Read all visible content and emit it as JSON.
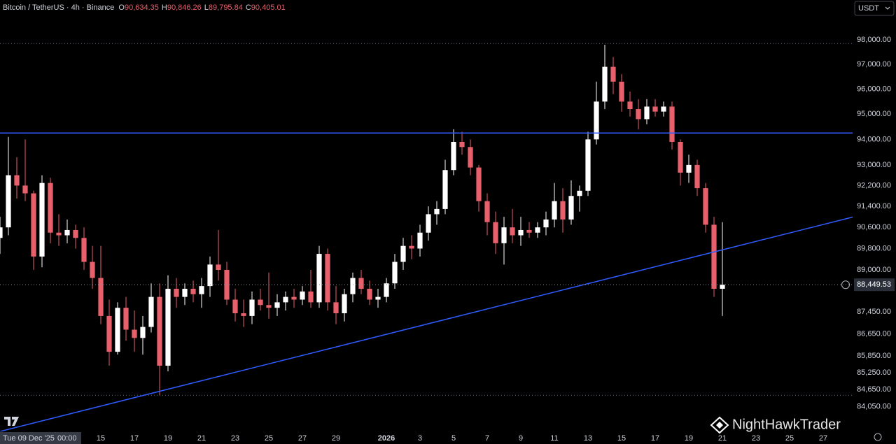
{
  "chart_data": {
    "type": "candlestick",
    "title": "Bitcoin / TetherUS · 4h · Binance",
    "ohlc_legend": [
      {
        "key": "O",
        "label": "90,634.35"
      },
      {
        "key": "H",
        "label": "90,846.26"
      },
      {
        "key": "L",
        "label": "89,795.84"
      },
      {
        "key": "C",
        "label": "90,405.01"
      }
    ],
    "currency": "USDT",
    "watermark": "NightHawkTrader",
    "crosshair_date": "Tue 09 Dec '25",
    "crosshair_time": "00:00",
    "log_scale": true,
    "grid": false,
    "up_color": "#ffffff",
    "down_color": "#e8606c",
    "x": [
      0,
      0.5,
      1,
      1.5,
      2,
      2.5,
      3,
      3.5,
      4,
      4.5,
      5,
      5.5,
      6,
      6.5,
      7,
      7.5,
      8,
      8.5,
      9,
      9.5,
      10,
      10.5,
      11,
      11.5,
      12,
      12.5,
      13,
      13.5,
      14,
      14.5,
      15,
      15.5,
      16,
      16.5,
      17,
      17.5,
      18,
      18.5,
      19,
      19.5,
      20,
      20.5,
      21,
      21.5,
      22,
      22.5,
      23,
      23.5,
      24,
      24.5,
      25,
      25.5,
      26,
      26.5,
      27,
      27.5,
      28,
      28.5,
      29,
      29.5,
      30,
      30.5,
      31,
      31.5,
      32,
      32.5,
      33,
      33.5,
      34,
      34.5,
      35,
      35.5,
      36,
      36.5,
      37,
      37.5,
      38,
      38.5,
      39,
      39.5,
      40,
      40.5,
      41,
      41.5,
      42,
      42.5,
      43
    ],
    "open": [
      90200,
      90600,
      92600,
      92200,
      91900,
      89500,
      92300,
      90400,
      90300,
      90500,
      90200,
      89300,
      88700,
      87300,
      86000,
      87600,
      86800,
      86500,
      86900,
      88000,
      85500,
      88300,
      88000,
      88300,
      88100,
      88400,
      89200,
      89000,
      87900,
      87400,
      87300,
      87900,
      87700,
      87600,
      87800,
      88000,
      87900,
      88200,
      87800,
      89600,
      87800,
      87400,
      88100,
      88700,
      88300,
      87900,
      88000,
      88500,
      89300,
      89900,
      89800,
      90400,
      91100,
      91300,
      92800,
      93900,
      93700,
      92900,
      91600,
      90800,
      90000,
      90600,
      90300,
      90500,
      90400,
      90600,
      90900,
      91600,
      90900,
      91800,
      92000,
      94000,
      95500,
      96900,
      96300,
      95500,
      95200,
      94800,
      95300,
      95100,
      95300,
      93900,
      92700,
      93000,
      92100,
      90700,
      88300
    ],
    "high": [
      91000,
      94100,
      93300,
      94000,
      92000,
      92600,
      92500,
      91100,
      90900,
      90700,
      90600,
      89900,
      89900,
      87900,
      87800,
      88000,
      87500,
      87300,
      88500,
      88500,
      88800,
      88700,
      88500,
      88600,
      88700,
      89500,
      90500,
      89300,
      88300,
      87900,
      88200,
      88300,
      88900,
      88100,
      88200,
      88300,
      88400,
      89000,
      89900,
      89800,
      88400,
      88300,
      88900,
      89000,
      88600,
      88300,
      88700,
      89600,
      90200,
      90300,
      90700,
      91400,
      91600,
      93200,
      94400,
      94300,
      94000,
      93000,
      91900,
      91200,
      91000,
      91300,
      91000,
      90800,
      90800,
      91200,
      92300,
      92100,
      92400,
      92200,
      94300,
      96300,
      97800,
      97300,
      96600,
      95900,
      95600,
      95600,
      95600,
      95500,
      95500,
      94000,
      93400,
      93200,
      92300,
      91000,
      90800
    ],
    "low": [
      89600,
      90300,
      91700,
      91600,
      89000,
      89100,
      90000,
      89900,
      90000,
      89800,
      89000,
      88300,
      87000,
      85500,
      85900,
      86400,
      86000,
      85900,
      86700,
      84450,
      85300,
      87600,
      87700,
      87800,
      87600,
      88000,
      88600,
      87700,
      87100,
      86900,
      87000,
      87500,
      87200,
      87300,
      87500,
      87600,
      87700,
      87600,
      87600,
      87500,
      87000,
      87100,
      87800,
      88100,
      87700,
      87600,
      87800,
      88300,
      89000,
      89400,
      89500,
      90100,
      90700,
      91100,
      92600,
      93400,
      92600,
      91200,
      90300,
      89600,
      89200,
      90000,
      89900,
      90200,
      90200,
      90300,
      90600,
      90400,
      90700,
      91200,
      91800,
      93800,
      95200,
      95800,
      95100,
      94900,
      94400,
      94600,
      94900,
      94900,
      93600,
      92200,
      92300,
      91800,
      90400,
      88000,
      87300
    ],
    "close": [
      90600,
      92600,
      92200,
      91900,
      89500,
      92300,
      90400,
      90300,
      90500,
      90200,
      89300,
      88700,
      87300,
      86000,
      87600,
      86800,
      86500,
      86900,
      88000,
      85500,
      88300,
      88000,
      88300,
      88100,
      88400,
      89200,
      89000,
      87900,
      87400,
      87300,
      87900,
      87700,
      87600,
      87800,
      88000,
      87900,
      88200,
      87800,
      89600,
      87800,
      87400,
      88100,
      88700,
      88300,
      87900,
      88000,
      88500,
      89300,
      89900,
      89800,
      90400,
      91100,
      91300,
      92800,
      93900,
      93700,
      92900,
      91600,
      90800,
      90000,
      90600,
      90300,
      90500,
      90400,
      90600,
      90900,
      91600,
      90900,
      91800,
      92000,
      94000,
      95500,
      96900,
      96300,
      95500,
      95200,
      94800,
      95300,
      95100,
      95300,
      93900,
      92700,
      93000,
      92100,
      90700,
      88300,
      88450
    ],
    "xlim": [
      0,
      50.75
    ],
    "ylim": [
      83180,
      99650
    ],
    "xticks": [
      {
        "value": 6,
        "label": "15"
      },
      {
        "value": 8,
        "label": "17"
      },
      {
        "value": 10,
        "label": "19"
      },
      {
        "value": 12,
        "label": "21"
      },
      {
        "value": 14,
        "label": "23"
      },
      {
        "value": 16,
        "label": "25"
      },
      {
        "value": 18,
        "label": "27"
      },
      {
        "value": 20,
        "label": "29"
      },
      {
        "value": 23,
        "label": "2026"
      },
      {
        "value": 25,
        "label": "3"
      },
      {
        "value": 27,
        "label": "5"
      },
      {
        "value": 29,
        "label": "7"
      },
      {
        "value": 31,
        "label": "9"
      },
      {
        "value": 33,
        "label": "11"
      },
      {
        "value": 35,
        "label": "13"
      },
      {
        "value": 37,
        "label": "15"
      },
      {
        "value": 39,
        "label": "17"
      },
      {
        "value": 41,
        "label": "19"
      },
      {
        "value": 43,
        "label": "21"
      },
      {
        "value": 45,
        "label": "23"
      },
      {
        "value": 47,
        "label": "25"
      },
      {
        "value": 49,
        "label": "27"
      }
    ],
    "yticks": [
      {
        "value": 98000,
        "label": "98,000.00"
      },
      {
        "value": 97000,
        "label": "97,000.00"
      },
      {
        "value": 96000,
        "label": "96,000.00"
      },
      {
        "value": 95000,
        "label": "95,000.00"
      },
      {
        "value": 94000,
        "label": "94,000.00"
      },
      {
        "value": 93000,
        "label": "93,000.00"
      },
      {
        "value": 92200,
        "label": "92,200.00"
      },
      {
        "value": 91400,
        "label": "91,400.00"
      },
      {
        "value": 90600,
        "label": "90,600.00"
      },
      {
        "value": 89800,
        "label": "89,800.00"
      },
      {
        "value": 89000,
        "label": "89,000.00"
      },
      {
        "value": 87450,
        "label": "87,450.00"
      },
      {
        "value": 86650,
        "label": "86,650.00"
      },
      {
        "value": 85850,
        "label": "85,850.00"
      },
      {
        "value": 85250,
        "label": "85,250.00"
      },
      {
        "value": 84650,
        "label": "84,650.00"
      },
      {
        "value": 84050,
        "label": "84,050.00"
      }
    ],
    "last_price": {
      "value": 88449.53,
      "label": "88,449.53"
    },
    "dotted_levels": [
      97850,
      84450
    ],
    "drawings": [
      {
        "kind": "horizontal",
        "color": "#2f5bff",
        "y": 94250
      },
      {
        "kind": "trend",
        "color": "#2f5bff",
        "x": [
          0,
          50.75
        ],
        "y": [
          83180,
          90990
        ]
      }
    ]
  }
}
